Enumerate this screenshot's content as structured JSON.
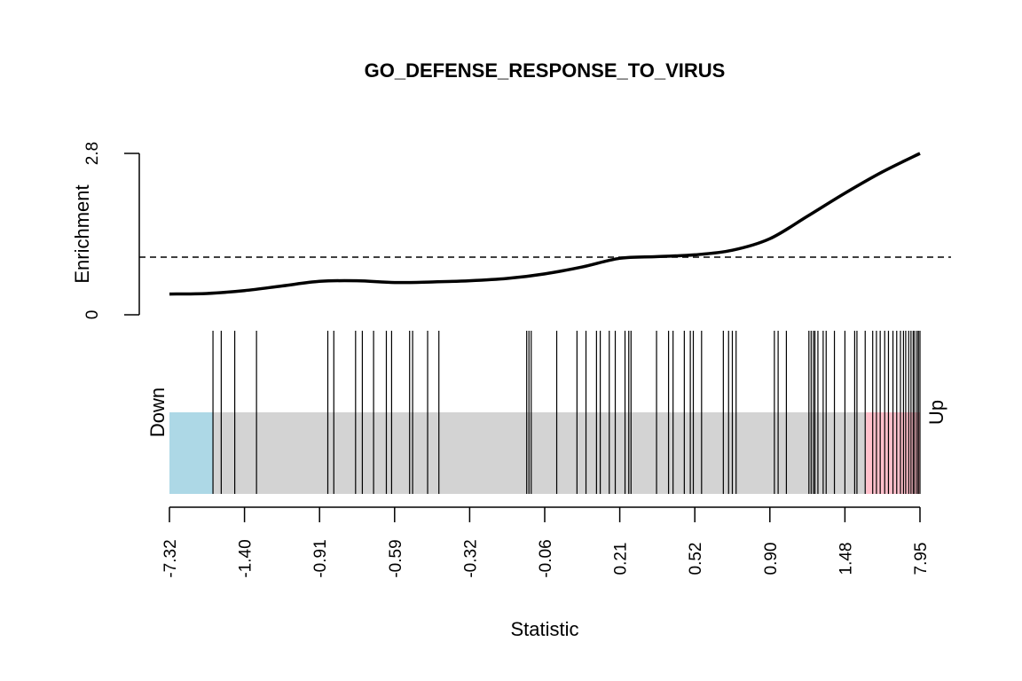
{
  "chart_data": {
    "type": "barcode",
    "title": "GO_DEFENSE_RESPONSE_TO_VIRUS",
    "xlabel": "Statistic",
    "enrichment": {
      "ylabel": "Enrichment",
      "ylim": [
        0,
        2.8
      ],
      "ytick_labels": [
        "0",
        "2.8"
      ],
      "reference_line": 1,
      "curve": [
        [
          0,
          0.36
        ],
        [
          0.05,
          0.37
        ],
        [
          0.1,
          0.42
        ],
        [
          0.15,
          0.5
        ],
        [
          0.2,
          0.58
        ],
        [
          0.25,
          0.59
        ],
        [
          0.3,
          0.56
        ],
        [
          0.35,
          0.57
        ],
        [
          0.4,
          0.59
        ],
        [
          0.45,
          0.63
        ],
        [
          0.5,
          0.71
        ],
        [
          0.55,
          0.83
        ],
        [
          0.6,
          0.98
        ],
        [
          0.65,
          1.01
        ],
        [
          0.7,
          1.04
        ],
        [
          0.75,
          1.12
        ],
        [
          0.8,
          1.32
        ],
        [
          0.85,
          1.71
        ],
        [
          0.9,
          2.11
        ],
        [
          0.95,
          2.48
        ],
        [
          1.0,
          2.8
        ]
      ]
    },
    "barcode": {
      "left_label": "Down",
      "right_label": "Up",
      "down_region": [
        0,
        0.058
      ],
      "up_region": [
        0.928,
        1.0
      ],
      "colors": {
        "down": "#add8e6",
        "middle": "#d3d3d3",
        "up": "#ffc0cb"
      },
      "rank_positions": [
        0.058,
        0.069,
        0.087,
        0.116,
        0.211,
        0.219,
        0.248,
        0.257,
        0.272,
        0.289,
        0.296,
        0.32,
        0.324,
        0.344,
        0.359,
        0.476,
        0.479,
        0.482,
        0.516,
        0.543,
        0.555,
        0.569,
        0.574,
        0.586,
        0.594,
        0.607,
        0.612,
        0.615,
        0.649,
        0.665,
        0.671,
        0.686,
        0.694,
        0.698,
        0.709,
        0.738,
        0.745,
        0.755,
        0.75,
        0.806,
        0.811,
        0.822,
        0.852,
        0.855,
        0.858,
        0.86,
        0.864,
        0.871,
        0.875,
        0.886,
        0.9,
        0.913,
        0.916,
        0.927,
        0.937,
        0.942,
        0.947,
        0.953,
        0.958,
        0.964,
        0.969,
        0.974,
        0.978,
        0.981,
        0.985,
        0.988,
        0.991,
        0.993,
        0.996,
        0.998,
        1.0
      ]
    },
    "x_axis": {
      "tick_labels": [
        "-7.32",
        "-1.40",
        "-0.91",
        "-0.59",
        "-0.32",
        "-0.06",
        "0.21",
        "0.52",
        "0.90",
        "1.48",
        "7.95"
      ]
    }
  }
}
